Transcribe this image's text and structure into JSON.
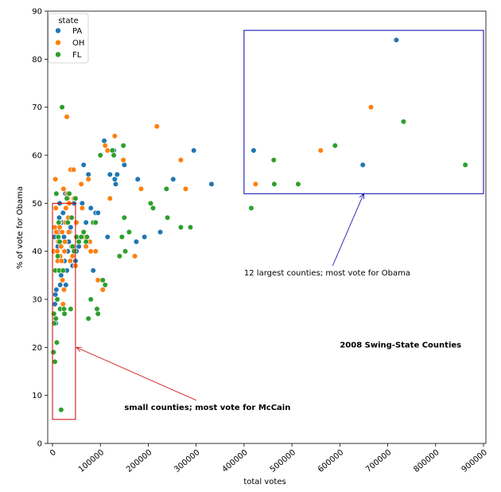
{
  "chart_data": {
    "type": "scatter",
    "title": "",
    "xlabel": "total votes",
    "ylabel": "% of vote for Obama",
    "xlim": [
      -10000,
      905000
    ],
    "ylim": [
      0,
      90
    ],
    "x_ticks": [
      0,
      100000,
      200000,
      300000,
      400000,
      500000,
      600000,
      700000,
      800000,
      900000
    ],
    "x_tick_labels": [
      "0",
      "100000",
      "200000",
      "300000",
      "400000",
      "500000",
      "600000",
      "700000",
      "800000",
      "900000"
    ],
    "y_ticks": [
      0,
      10,
      20,
      30,
      40,
      50,
      60,
      70,
      80,
      90
    ],
    "y_tick_labels": [
      "0",
      "10",
      "20",
      "30",
      "40",
      "50",
      "60",
      "70",
      "80",
      "90"
    ],
    "grid": false,
    "legend": {
      "title": "state",
      "placement": "top-left"
    },
    "series": [
      {
        "name": "PA",
        "color": "#1f77b4",
        "points": [
          [
            2000,
            40
          ],
          [
            4000,
            43
          ],
          [
            5000,
            29
          ],
          [
            6000,
            31
          ],
          [
            7000,
            25
          ],
          [
            8000,
            32
          ],
          [
            9000,
            36
          ],
          [
            10000,
            38
          ],
          [
            11000,
            41
          ],
          [
            12000,
            44
          ],
          [
            14000,
            47
          ],
          [
            15000,
            50
          ],
          [
            16000,
            33
          ],
          [
            18000,
            35
          ],
          [
            20000,
            46
          ],
          [
            22000,
            48
          ],
          [
            24000,
            43
          ],
          [
            25000,
            38
          ],
          [
            27000,
            52
          ],
          [
            28000,
            33
          ],
          [
            30000,
            36
          ],
          [
            32000,
            40
          ],
          [
            34000,
            42
          ],
          [
            36000,
            44
          ],
          [
            38000,
            45
          ],
          [
            40000,
            47
          ],
          [
            42000,
            37
          ],
          [
            45000,
            50
          ],
          [
            48000,
            38
          ],
          [
            50000,
            40
          ],
          [
            55000,
            41
          ],
          [
            60000,
            43
          ],
          [
            62000,
            50
          ],
          [
            65000,
            58
          ],
          [
            70000,
            46
          ],
          [
            75000,
            56
          ],
          [
            80000,
            49
          ],
          [
            85000,
            36
          ],
          [
            90000,
            48
          ],
          [
            95000,
            48
          ],
          [
            100000,
            60
          ],
          [
            108000,
            63
          ],
          [
            115000,
            43
          ],
          [
            120000,
            56
          ],
          [
            128000,
            61
          ],
          [
            130000,
            55
          ],
          [
            132000,
            54
          ],
          [
            135000,
            56
          ],
          [
            150000,
            58
          ],
          [
            175000,
            42
          ],
          [
            178000,
            55
          ],
          [
            192000,
            43
          ],
          [
            225000,
            44
          ],
          [
            252000,
            55
          ],
          [
            295000,
            61
          ],
          [
            332000,
            54
          ],
          [
            420000,
            61
          ],
          [
            648000,
            58
          ],
          [
            718000,
            84
          ]
        ]
      },
      {
        "name": "OH",
        "color": "#ff7f0e",
        "points": [
          [
            3000,
            40
          ],
          [
            5000,
            45
          ],
          [
            6000,
            55
          ],
          [
            7000,
            49
          ],
          [
            8000,
            44
          ],
          [
            10000,
            40
          ],
          [
            11000,
            38
          ],
          [
            12000,
            42
          ],
          [
            13000,
            36
          ],
          [
            14000,
            46
          ],
          [
            15000,
            45
          ],
          [
            16000,
            39
          ],
          [
            18000,
            41
          ],
          [
            19000,
            38
          ],
          [
            20000,
            44
          ],
          [
            21000,
            34
          ],
          [
            22000,
            29
          ],
          [
            23000,
            53
          ],
          [
            24000,
            32
          ],
          [
            25000,
            40
          ],
          [
            26000,
            42
          ],
          [
            27000,
            46
          ],
          [
            28000,
            49
          ],
          [
            30000,
            68
          ],
          [
            31000,
            52
          ],
          [
            32000,
            51
          ],
          [
            33000,
            47
          ],
          [
            34000,
            44
          ],
          [
            35000,
            50
          ],
          [
            37000,
            38
          ],
          [
            38000,
            57
          ],
          [
            40000,
            41
          ],
          [
            42000,
            39
          ],
          [
            44000,
            57
          ],
          [
            45000,
            51
          ],
          [
            48000,
            37
          ],
          [
            50000,
            46
          ],
          [
            55000,
            42
          ],
          [
            60000,
            54
          ],
          [
            62000,
            49
          ],
          [
            65000,
            43
          ],
          [
            70000,
            41
          ],
          [
            75000,
            55
          ],
          [
            78000,
            42
          ],
          [
            80000,
            40
          ],
          [
            90000,
            40
          ],
          [
            95000,
            34
          ],
          [
            105000,
            32
          ],
          [
            110000,
            62
          ],
          [
            115000,
            61
          ],
          [
            120000,
            51
          ],
          [
            130000,
            64
          ],
          [
            148000,
            59
          ],
          [
            172000,
            39
          ],
          [
            185000,
            53
          ],
          [
            218000,
            66
          ],
          [
            268000,
            59
          ],
          [
            278000,
            53
          ],
          [
            424000,
            54
          ],
          [
            560000,
            61
          ],
          [
            665000,
            70
          ]
        ]
      },
      {
        "name": "FL",
        "color": "#2ca02c",
        "points": [
          [
            2000,
            19
          ],
          [
            3000,
            27
          ],
          [
            4000,
            25
          ],
          [
            5000,
            17
          ],
          [
            6000,
            36
          ],
          [
            7000,
            26
          ],
          [
            8000,
            52
          ],
          [
            9000,
            21
          ],
          [
            10000,
            30
          ],
          [
            11000,
            39
          ],
          [
            12000,
            43
          ],
          [
            13000,
            46
          ],
          [
            14000,
            36
          ],
          [
            15000,
            42
          ],
          [
            16000,
            28
          ],
          [
            18000,
            7
          ],
          [
            20000,
            70
          ],
          [
            22000,
            36
          ],
          [
            24000,
            28
          ],
          [
            25000,
            27
          ],
          [
            30000,
            51
          ],
          [
            32000,
            46
          ],
          [
            35000,
            52
          ],
          [
            38000,
            28
          ],
          [
            40000,
            47
          ],
          [
            42000,
            41
          ],
          [
            45000,
            40
          ],
          [
            48000,
            51
          ],
          [
            50000,
            43
          ],
          [
            55000,
            42
          ],
          [
            60000,
            43
          ],
          [
            65000,
            44
          ],
          [
            70000,
            42
          ],
          [
            72000,
            43
          ],
          [
            75000,
            26
          ],
          [
            80000,
            30
          ],
          [
            85000,
            46
          ],
          [
            90000,
            46
          ],
          [
            93000,
            28
          ],
          [
            95000,
            27
          ],
          [
            100000,
            60
          ],
          [
            105000,
            34
          ],
          [
            110000,
            33
          ],
          [
            125000,
            61
          ],
          [
            128000,
            60
          ],
          [
            140000,
            39
          ],
          [
            145000,
            43
          ],
          [
            148000,
            62
          ],
          [
            150000,
            47
          ],
          [
            152000,
            40
          ],
          [
            160000,
            44
          ],
          [
            205000,
            50
          ],
          [
            210000,
            49
          ],
          [
            238000,
            53
          ],
          [
            240000,
            47
          ],
          [
            268000,
            45
          ],
          [
            288000,
            45
          ],
          [
            415000,
            49
          ],
          [
            462000,
            59
          ],
          [
            463000,
            54
          ],
          [
            513000,
            54
          ],
          [
            590000,
            62
          ],
          [
            733000,
            67
          ],
          [
            862000,
            58
          ]
        ]
      }
    ],
    "annotations": {
      "top_text": "12 largest counties; most vote for Obama",
      "bottom_text": "small counties; most vote for McCain",
      "side_title": "2008 Swing-State Counties",
      "top_box_color": "#0000aa",
      "bottom_box_color": "#cc0000"
    }
  }
}
